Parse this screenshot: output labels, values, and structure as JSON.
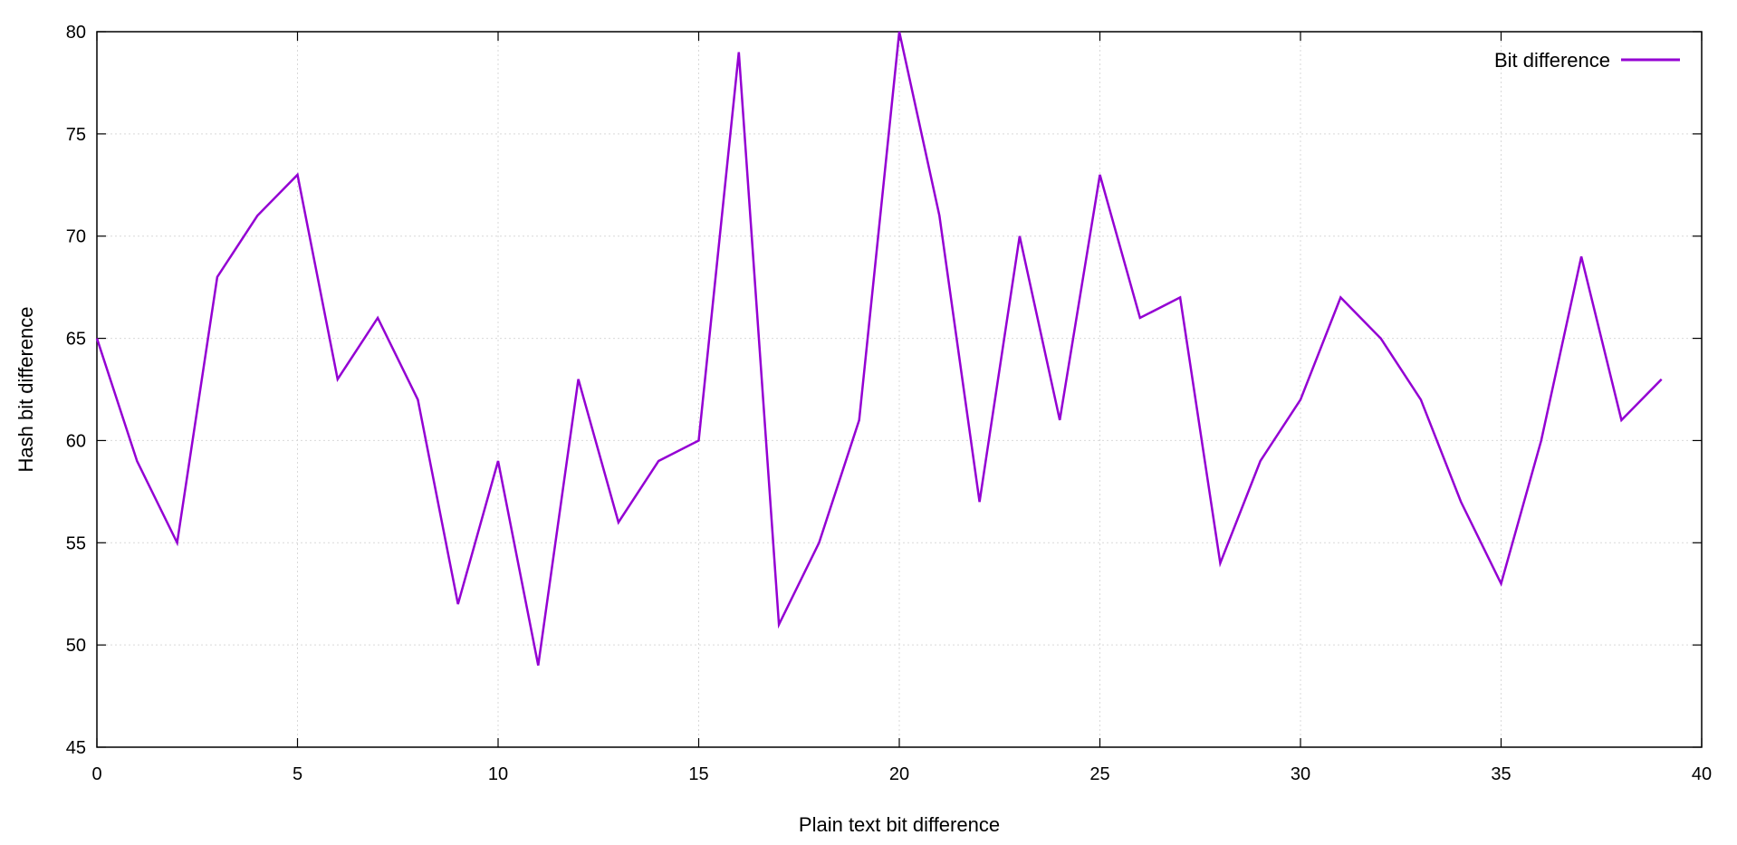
{
  "chart_data": {
    "type": "line",
    "xlabel": "Plain text bit difference",
    "ylabel": "Hash bit difference",
    "xlim": [
      0,
      40
    ],
    "ylim": [
      45,
      80
    ],
    "xticks": [
      0,
      5,
      10,
      15,
      20,
      25,
      30,
      35,
      40
    ],
    "yticks": [
      45,
      50,
      55,
      60,
      65,
      70,
      75,
      80
    ],
    "grid": true,
    "legend_position": "top-right",
    "series": [
      {
        "name": "Bit difference",
        "color": "#9400d3",
        "x": [
          0,
          1,
          2,
          3,
          4,
          5,
          6,
          7,
          8,
          9,
          10,
          11,
          12,
          13,
          14,
          15,
          16,
          17,
          18,
          19,
          20,
          21,
          22,
          23,
          24,
          25,
          26,
          27,
          28,
          29,
          30,
          31,
          32,
          33,
          34,
          35,
          36,
          37,
          38,
          39
        ],
        "y": [
          65,
          59,
          55,
          68,
          71,
          73,
          63,
          66,
          62,
          52,
          59,
          49,
          63,
          56,
          59,
          60,
          79,
          51,
          55,
          61,
          80,
          71,
          57,
          70,
          61,
          73,
          66,
          67,
          54,
          59,
          62,
          67,
          65,
          62,
          57,
          53,
          60,
          69,
          61,
          63
        ]
      }
    ]
  }
}
